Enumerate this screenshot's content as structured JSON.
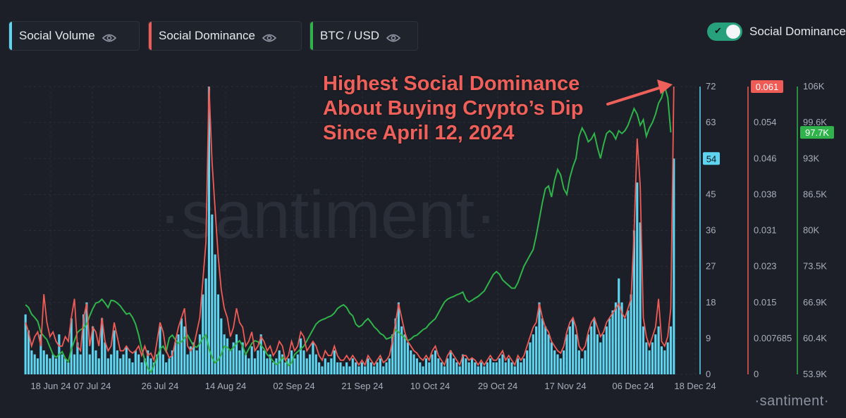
{
  "legend": [
    {
      "label": "Social Volume",
      "color": "#5ed5f0"
    },
    {
      "label": "Social Dominance",
      "color": "#ef5b55"
    },
    {
      "label": "BTC / USD",
      "color": "#2fb34a"
    }
  ],
  "toggle": {
    "label": "Social Dominance",
    "on": true
  },
  "annotation": [
    "Highest Social Dominance",
    "About Buying Crypto’s Dip",
    "Since April 12, 2024"
  ],
  "watermark": "·santiment·",
  "logo": "·santiment·",
  "colors": {
    "volume": "#5ed5f0",
    "dominance": "#ef5b55",
    "btc": "#2fb34a",
    "background": "#1c1f27"
  },
  "chart_data": {
    "type": "bar",
    "x_ticks": [
      "18 Jun 24",
      "07 Jul 24",
      "26 Jul 24",
      "14 Aug 24",
      "02 Sep 24",
      "21 Sep 24",
      "10 Oct 24",
      "29 Oct 24",
      "17 Nov 24",
      "06 Dec 24",
      "18 Dec 24"
    ],
    "y_volume_ticks": [
      "0",
      "9",
      "18",
      "27",
      "36",
      "45",
      "54",
      "63",
      "72"
    ],
    "y_dominance_ticks": [
      "0",
      "0.007685",
      "0.015",
      "0.023",
      "0.031",
      "0.038",
      "0.046",
      "0.054",
      "0.061"
    ],
    "y_btc_ticks": [
      "53.9K",
      "60.4K",
      "66.9K",
      "73.5K",
      "80K",
      "86.5K",
      "93K",
      "99.6K",
      "106K"
    ],
    "ylim_volume": [
      0,
      72
    ],
    "ylim_dominance": [
      0,
      0.061
    ],
    "ylim_btc": [
      53900,
      106000
    ],
    "current_volume": "54",
    "current_dominance": "0.061",
    "current_btc": "97.7K",
    "series": [
      {
        "name": "Social Volume",
        "kind": "bar",
        "values": [
          15,
          11,
          6,
          5,
          4,
          10,
          6,
          5,
          4,
          5,
          4,
          10,
          5,
          4,
          3,
          14,
          5,
          8,
          5,
          15,
          18,
          5,
          12,
          6,
          4,
          14,
          8,
          4,
          5,
          11,
          6,
          4,
          5,
          7,
          4,
          3,
          6,
          5,
          3,
          4,
          6,
          4,
          3,
          5,
          12,
          5,
          3,
          4,
          6,
          8,
          10,
          14,
          12,
          5,
          7,
          8,
          6,
          10,
          20,
          24,
          72,
          40,
          30,
          20,
          14,
          10,
          9,
          6,
          8,
          10,
          6,
          8,
          5,
          4,
          7,
          4,
          6,
          10,
          6,
          4,
          5,
          3,
          4,
          6,
          5,
          3,
          4,
          6,
          4,
          5,
          9,
          6,
          4,
          5,
          8,
          5,
          3,
          2,
          4,
          3,
          4,
          6,
          3,
          3,
          2,
          3,
          2,
          4,
          3,
          2,
          3,
          2,
          4,
          3,
          2,
          3,
          4,
          2,
          3,
          4,
          10,
          14,
          18,
          12,
          10,
          8,
          6,
          5,
          4,
          3,
          2,
          4,
          3,
          5,
          6,
          4,
          3,
          2,
          4,
          6,
          4,
          3,
          2,
          5,
          4,
          3,
          4,
          3,
          2,
          3,
          2,
          3,
          4,
          3,
          3,
          4,
          5,
          3,
          4,
          3,
          2,
          4,
          3,
          4,
          6,
          8,
          10,
          12,
          18,
          14,
          12,
          10,
          8,
          6,
          5,
          4,
          6,
          10,
          12,
          14,
          10,
          6,
          4,
          6,
          10,
          12,
          14,
          10,
          8,
          10,
          12,
          14,
          16,
          18,
          24,
          18,
          14,
          16,
          20,
          36,
          48,
          38,
          12,
          8,
          6,
          8,
          10,
          12,
          7,
          6,
          8,
          12,
          54
        ]
      },
      {
        "name": "Social Dominance",
        "kind": "line",
        "values": [
          0.011,
          0.009,
          0.006,
          0.008,
          0.009,
          0.006,
          0.017,
          0.011,
          0.008,
          0.009,
          0.007,
          0.006,
          0.006,
          0.008,
          0.007,
          0.012,
          0.016,
          0.006,
          0.005,
          0.012,
          0.015,
          0.006,
          0.01,
          0.009,
          0.006,
          0.012,
          0.007,
          0.005,
          0.006,
          0.011,
          0.008,
          0.005,
          0.005,
          0.006,
          0.005,
          0.0045,
          0.005,
          0.006,
          0.004,
          0.006,
          0.004,
          0.0045,
          0.003,
          0.007,
          0.011,
          0.009,
          0.005,
          0.0035,
          0.004,
          0.007,
          0.01,
          0.012,
          0.014,
          0.006,
          0.005,
          0.006,
          0.009,
          0.012,
          0.02,
          0.028,
          0.061,
          0.045,
          0.035,
          0.025,
          0.018,
          0.014,
          0.012,
          0.008,
          0.01,
          0.014,
          0.011,
          0.01,
          0.006,
          0.007,
          0.009,
          0.005,
          0.006,
          0.008,
          0.007,
          0.005,
          0.006,
          0.004,
          0.005,
          0.007,
          0.006,
          0.003,
          0.004,
          0.007,
          0.005,
          0.006,
          0.009,
          0.008,
          0.005,
          0.006,
          0.007,
          0.006,
          0.004,
          0.003,
          0.005,
          0.004,
          0.004,
          0.006,
          0.004,
          0.003,
          0.003,
          0.004,
          0.003,
          0.004,
          0.003,
          0.002,
          0.003,
          0.002,
          0.004,
          0.003,
          0.002,
          0.003,
          0.004,
          0.0025,
          0.003,
          0.004,
          0.007,
          0.011,
          0.015,
          0.012,
          0.009,
          0.007,
          0.006,
          0.005,
          0.0045,
          0.0035,
          0.003,
          0.004,
          0.003,
          0.005,
          0.006,
          0.004,
          0.003,
          0.002,
          0.004,
          0.005,
          0.004,
          0.003,
          0.002,
          0.004,
          0.004,
          0.003,
          0.0035,
          0.003,
          0.002,
          0.003,
          0.002,
          0.003,
          0.004,
          0.003,
          0.003,
          0.004,
          0.005,
          0.003,
          0.004,
          0.003,
          0.002,
          0.004,
          0.003,
          0.004,
          0.006,
          0.008,
          0.01,
          0.011,
          0.015,
          0.012,
          0.01,
          0.009,
          0.007,
          0.006,
          0.005,
          0.0045,
          0.006,
          0.009,
          0.011,
          0.012,
          0.01,
          0.006,
          0.005,
          0.006,
          0.009,
          0.011,
          0.012,
          0.01,
          0.008,
          0.009,
          0.011,
          0.012,
          0.013,
          0.014,
          0.015,
          0.013,
          0.012,
          0.014,
          0.016,
          0.03,
          0.05,
          0.04,
          0.012,
          0.008,
          0.006,
          0.008,
          0.01,
          0.016,
          0.007,
          0.006,
          0.008,
          0.014,
          0.061
        ]
      },
      {
        "name": "BTC / USD",
        "kind": "line",
        "values": [
          66.5,
          66.0,
          64.8,
          64.2,
          63.5,
          61.5,
          60.8,
          60.2,
          58.8,
          57.5,
          57.0,
          57.5,
          58.0,
          56.8,
          56.2,
          58.5,
          60.0,
          61.5,
          62.0,
          62.3,
          63.0,
          64.5,
          65.8,
          66.8,
          67.0,
          67.5,
          66.8,
          66.0,
          67.3,
          67.2,
          66.8,
          66.3,
          65.5,
          64.8,
          65.0,
          64.2,
          63.0,
          61.0,
          58.5,
          56.5,
          55.0,
          54.3,
          55.5,
          57.0,
          58.5,
          59.0,
          58.0,
          60.5,
          61.0,
          60.2,
          59.5,
          59.8,
          60.5,
          61.0,
          60.0,
          59.0,
          58.8,
          59.5,
          60.5,
          61.0,
          58.5,
          57.0,
          56.0,
          56.5,
          57.5,
          59.0,
          58.8,
          58.2,
          58.8,
          59.5,
          60.0,
          59.0,
          57.5,
          58.5,
          59.5,
          60.0,
          59.8,
          59.2,
          58.5,
          57.5,
          57.0,
          56.3,
          55.7,
          56.0,
          57.0,
          56.5,
          55.5,
          56.0,
          57.5,
          58.0,
          58.5,
          59.0,
          60.0,
          61.0,
          62.0,
          63.0,
          63.5,
          63.8,
          64.0,
          64.3,
          64.5,
          65.0,
          65.8,
          66.2,
          66.5,
          66.0,
          65.0,
          64.5,
          63.0,
          62.5,
          62.8,
          63.5,
          64.0,
          63.3,
          62.5,
          62.0,
          61.3,
          61.0,
          60.3,
          60.5,
          60.8,
          62.0,
          61.5,
          61.0,
          60.5,
          60.0,
          60.3,
          60.8,
          61.0,
          61.5,
          62.0,
          62.3,
          63.0,
          63.5,
          64.0,
          65.0,
          66.0,
          67.0,
          67.5,
          67.8,
          68.0,
          68.3,
          68.5,
          68.8,
          67.5,
          67.0,
          67.3,
          67.7,
          68.0,
          68.5,
          69.0,
          70.0,
          71.0,
          72.0,
          72.5,
          72.0,
          71.0,
          70.5,
          70.0,
          69.5,
          69.5,
          70.5,
          72.0,
          73.5,
          74.5,
          75.5,
          76.5,
          79.0,
          82.0,
          85.0,
          87.5,
          88.0,
          86.0,
          89.0,
          91.0,
          90.0,
          87.5,
          86.5,
          89.5,
          91.5,
          93.0,
          97.0,
          98.5,
          97.5,
          96.0,
          96.5,
          97.5,
          95.0,
          93.0,
          95.5,
          97.5,
          98.0,
          97.5,
          96.5,
          98.0,
          97.5,
          98.0,
          99.0,
          100.5,
          102.0,
          101.0,
          99.0,
          100.0,
          97.0,
          98.5,
          99.5,
          101.0,
          103.0,
          104.0,
          106.0,
          104.0,
          97.7
        ]
      }
    ]
  }
}
